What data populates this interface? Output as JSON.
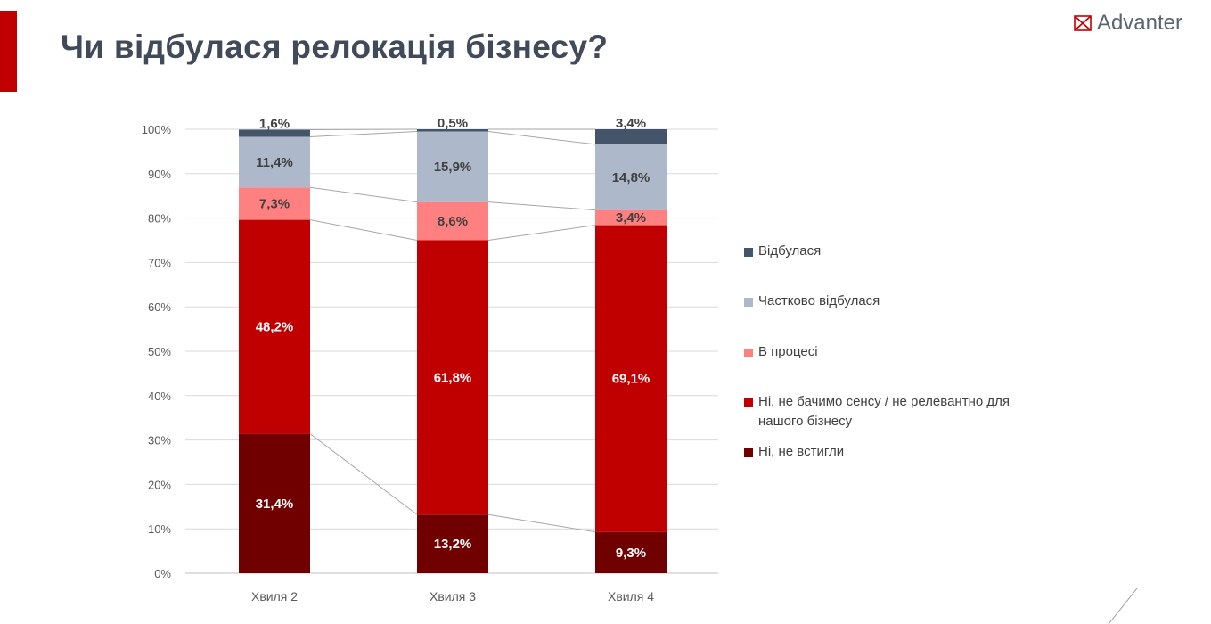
{
  "slide": {
    "title": "Чи відбулася релокація бізнесу?",
    "logo_text": "Advanter",
    "logo_icon": "envelope-x-icon",
    "accent_color": "#c00000"
  },
  "chart_data": {
    "type": "bar",
    "stacked": true,
    "categories": [
      "Хвиля 2",
      "Хвиля 3",
      "Хвиля 4"
    ],
    "ylim": [
      0,
      100
    ],
    "yticks": [
      "0%",
      "10%",
      "20%",
      "30%",
      "40%",
      "50%",
      "60%",
      "70%",
      "80%",
      "90%",
      "100%"
    ],
    "grid": true,
    "connector_lines": true,
    "legend_position": "right",
    "series": [
      {
        "name": "Ні, не встигли",
        "color": "#700000",
        "label_color": "#ffffff",
        "values": [
          31.4,
          13.2,
          9.3
        ],
        "labels": [
          "31,4%",
          "13,2%",
          "9,3%"
        ]
      },
      {
        "name": "Ні, не бачимо сенсу / не релевантно для нашого бізнесу",
        "color": "#c00000",
        "label_color": "#ffffff",
        "values": [
          48.2,
          61.8,
          69.1
        ],
        "labels": [
          "48,2%",
          "61,8%",
          "69,1%"
        ]
      },
      {
        "name": "В процесі",
        "color": "#ff8080",
        "label_color": "#404040",
        "values": [
          7.3,
          8.6,
          3.4
        ],
        "labels": [
          "7,3%",
          "8,6%",
          "3,4%"
        ]
      },
      {
        "name": "Частково відбулася",
        "color": "#adb9ca",
        "label_color": "#404040",
        "values": [
          11.4,
          15.9,
          14.8
        ],
        "labels": [
          "11,4%",
          "15,9%",
          "14,8%"
        ]
      },
      {
        "name": "Відбулася",
        "color": "#44546a",
        "label_color": "#404040",
        "values": [
          1.6,
          0.5,
          3.4
        ],
        "labels": [
          "1,6%",
          "0,5%",
          "3,4%"
        ]
      }
    ]
  }
}
